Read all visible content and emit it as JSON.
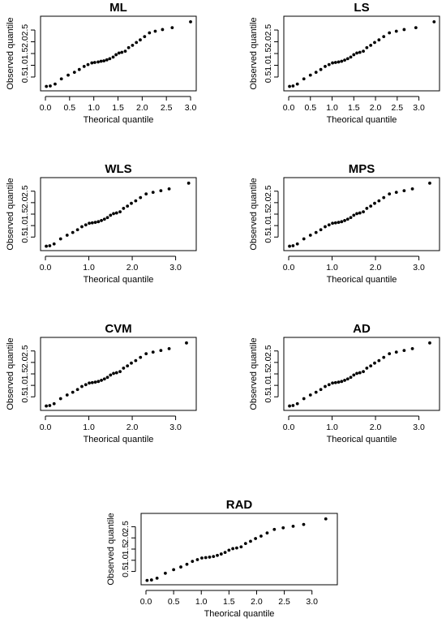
{
  "chart_data": [
    {
      "type": "scatter",
      "title": "ML",
      "xlabel": "Theorical quantile",
      "ylabel": "Observed quantile",
      "xlim": [
        0,
        3.05
      ],
      "ylim": [
        0.05,
        2.95
      ],
      "xticks": [
        0.0,
        0.5,
        1.0,
        1.5,
        2.0,
        2.5,
        3.0
      ],
      "xtick_labels": [
        "0.0",
        "0.5",
        "1.0",
        "1.5",
        "2.0",
        "2.5",
        "3.0"
      ],
      "yticks": [
        0.5,
        1.0,
        1.5,
        2.0,
        2.5
      ],
      "ytick_labels": [
        "0.5",
        "1.0",
        "1.5",
        "2.0",
        "2.5"
      ],
      "x": [
        0.02,
        0.1,
        0.2,
        0.33,
        0.47,
        0.6,
        0.7,
        0.8,
        0.88,
        0.96,
        1.02,
        1.09,
        1.15,
        1.21,
        1.27,
        1.33,
        1.4,
        1.46,
        1.52,
        1.58,
        1.65,
        1.72,
        1.8,
        1.88,
        1.96,
        2.05,
        2.15,
        2.27,
        2.42,
        2.62,
        3.0
      ],
      "y": [
        0.1,
        0.12,
        0.2,
        0.42,
        0.58,
        0.7,
        0.82,
        0.95,
        1.03,
        1.1,
        1.12,
        1.14,
        1.17,
        1.19,
        1.23,
        1.28,
        1.35,
        1.45,
        1.52,
        1.55,
        1.6,
        1.75,
        1.85,
        1.97,
        2.08,
        2.22,
        2.38,
        2.45,
        2.52,
        2.6,
        2.85
      ]
    },
    {
      "type": "scatter",
      "title": "LS",
      "xlabel": "Theorical quantile",
      "ylabel": "Observed quantile",
      "xlim": [
        0,
        3.4
      ],
      "ylim": [
        0.05,
        2.95
      ],
      "xticks": [
        0.0,
        0.5,
        1.0,
        1.5,
        2.0,
        2.5,
        3.0
      ],
      "xtick_labels": [
        "0.0",
        "0.5",
        "1.0",
        "1.5",
        "2.0",
        "2.5",
        "3.0"
      ],
      "yticks": [
        0.5,
        1.0,
        1.5,
        2.0,
        2.5
      ],
      "ytick_labels": [
        "0.5",
        "1.0",
        "1.5",
        "2.0",
        "2.5"
      ],
      "x": [
        0.02,
        0.1,
        0.2,
        0.35,
        0.5,
        0.63,
        0.74,
        0.84,
        0.93,
        1.01,
        1.08,
        1.15,
        1.22,
        1.29,
        1.36,
        1.43,
        1.5,
        1.57,
        1.64,
        1.72,
        1.8,
        1.89,
        1.98,
        2.08,
        2.19,
        2.32,
        2.48,
        2.66,
        2.93,
        3.35
      ],
      "y": [
        0.1,
        0.12,
        0.2,
        0.42,
        0.58,
        0.7,
        0.82,
        0.95,
        1.03,
        1.1,
        1.12,
        1.14,
        1.17,
        1.22,
        1.28,
        1.35,
        1.45,
        1.52,
        1.55,
        1.6,
        1.75,
        1.85,
        1.97,
        2.08,
        2.22,
        2.38,
        2.45,
        2.52,
        2.6,
        2.85
      ]
    },
    {
      "type": "scatter",
      "title": "WLS",
      "xlabel": "Theorical quantile",
      "ylabel": "Observed quantile",
      "xlim": [
        0,
        3.4
      ],
      "ylim": [
        0.05,
        2.95
      ],
      "xticks": [
        0.0,
        1.0,
        2.0,
        3.0
      ],
      "xtick_labels": [
        "0.0",
        "1.0",
        "2.0",
        "3.0"
      ],
      "yticks": [
        0.5,
        1.0,
        1.5,
        2.0,
        2.5
      ],
      "ytick_labels": [
        "0.5",
        "1.0",
        "1.5",
        "2.0",
        "2.5"
      ],
      "x": [
        0.02,
        0.1,
        0.2,
        0.35,
        0.5,
        0.63,
        0.74,
        0.84,
        0.93,
        1.01,
        1.08,
        1.15,
        1.22,
        1.29,
        1.36,
        1.43,
        1.5,
        1.57,
        1.64,
        1.72,
        1.8,
        1.89,
        1.98,
        2.08,
        2.19,
        2.32,
        2.48,
        2.66,
        2.85,
        3.3
      ],
      "y": [
        0.1,
        0.12,
        0.2,
        0.42,
        0.58,
        0.7,
        0.82,
        0.95,
        1.03,
        1.1,
        1.12,
        1.14,
        1.17,
        1.22,
        1.28,
        1.35,
        1.45,
        1.52,
        1.55,
        1.6,
        1.75,
        1.85,
        1.97,
        2.08,
        2.22,
        2.38,
        2.45,
        2.52,
        2.6,
        2.85
      ]
    },
    {
      "type": "scatter",
      "title": "MPS",
      "xlabel": "Theorical quantile",
      "ylabel": "Observed quantile",
      "xlim": [
        0,
        3.4
      ],
      "ylim": [
        0.05,
        2.95
      ],
      "xticks": [
        0.0,
        1.0,
        2.0,
        3.0
      ],
      "xtick_labels": [
        "0.0",
        "1.0",
        "2.0",
        "3.0"
      ],
      "yticks": [
        0.5,
        1.0,
        1.5,
        2.0,
        2.5
      ],
      "ytick_labels": [
        "0.5",
        "1.0",
        "1.5",
        "2.0",
        "2.5"
      ],
      "x": [
        0.02,
        0.1,
        0.2,
        0.35,
        0.5,
        0.63,
        0.74,
        0.84,
        0.93,
        1.01,
        1.08,
        1.15,
        1.22,
        1.29,
        1.36,
        1.43,
        1.5,
        1.57,
        1.64,
        1.72,
        1.8,
        1.89,
        1.98,
        2.08,
        2.19,
        2.32,
        2.48,
        2.66,
        2.85,
        3.25
      ],
      "y": [
        0.1,
        0.12,
        0.2,
        0.42,
        0.58,
        0.7,
        0.82,
        0.95,
        1.03,
        1.1,
        1.12,
        1.14,
        1.17,
        1.22,
        1.28,
        1.35,
        1.45,
        1.52,
        1.55,
        1.6,
        1.75,
        1.85,
        1.97,
        2.08,
        2.22,
        2.38,
        2.45,
        2.52,
        2.6,
        2.85
      ]
    },
    {
      "type": "scatter",
      "title": "CVM",
      "xlabel": "Theorical quantile",
      "ylabel": "Observed quantile",
      "xlim": [
        0,
        3.4
      ],
      "ylim": [
        0.05,
        2.95
      ],
      "xticks": [
        0.0,
        1.0,
        2.0,
        3.0
      ],
      "xtick_labels": [
        "0.0",
        "1.0",
        "2.0",
        "3.0"
      ],
      "yticks": [
        0.5,
        1.0,
        1.5,
        2.0,
        2.5
      ],
      "ytick_labels": [
        "0.5",
        "1.0",
        "1.5",
        "2.0",
        "2.5"
      ],
      "x": [
        0.02,
        0.1,
        0.2,
        0.35,
        0.5,
        0.63,
        0.74,
        0.84,
        0.93,
        1.01,
        1.08,
        1.15,
        1.22,
        1.29,
        1.36,
        1.43,
        1.5,
        1.57,
        1.64,
        1.72,
        1.8,
        1.89,
        1.98,
        2.08,
        2.19,
        2.32,
        2.48,
        2.66,
        2.85,
        3.25
      ],
      "y": [
        0.1,
        0.12,
        0.2,
        0.42,
        0.58,
        0.7,
        0.82,
        0.95,
        1.03,
        1.1,
        1.12,
        1.14,
        1.17,
        1.22,
        1.28,
        1.35,
        1.45,
        1.52,
        1.55,
        1.6,
        1.75,
        1.85,
        1.97,
        2.08,
        2.22,
        2.38,
        2.45,
        2.52,
        2.6,
        2.85
      ]
    },
    {
      "type": "scatter",
      "title": "AD",
      "xlabel": "Theorical quantile",
      "ylabel": "Observed quantile",
      "xlim": [
        0,
        3.4
      ],
      "ylim": [
        0.05,
        2.95
      ],
      "xticks": [
        0.0,
        1.0,
        2.0,
        3.0
      ],
      "xtick_labels": [
        "0.0",
        "1.0",
        "2.0",
        "3.0"
      ],
      "yticks": [
        0.5,
        1.0,
        1.5,
        2.0,
        2.5
      ],
      "ytick_labels": [
        "0.5",
        "1.0",
        "1.5",
        "2.0",
        "2.5"
      ],
      "x": [
        0.02,
        0.1,
        0.2,
        0.35,
        0.5,
        0.63,
        0.74,
        0.84,
        0.93,
        1.01,
        1.08,
        1.15,
        1.22,
        1.29,
        1.36,
        1.43,
        1.5,
        1.57,
        1.64,
        1.72,
        1.8,
        1.89,
        1.98,
        2.08,
        2.19,
        2.32,
        2.48,
        2.66,
        2.85,
        3.25
      ],
      "y": [
        0.1,
        0.12,
        0.2,
        0.42,
        0.58,
        0.7,
        0.82,
        0.95,
        1.03,
        1.1,
        1.12,
        1.14,
        1.17,
        1.22,
        1.28,
        1.35,
        1.45,
        1.52,
        1.55,
        1.6,
        1.75,
        1.85,
        1.97,
        2.08,
        2.22,
        2.38,
        2.45,
        2.52,
        2.6,
        2.85
      ]
    },
    {
      "type": "scatter",
      "title": "RAD",
      "xlabel": "Theorical quantile",
      "ylabel": "Observed quantile",
      "xlim": [
        0,
        3.4
      ],
      "ylim": [
        0.05,
        2.95
      ],
      "xticks": [
        0.0,
        0.5,
        1.0,
        1.5,
        2.0,
        2.5,
        3.0
      ],
      "xtick_labels": [
        "0.0",
        "0.5",
        "1.0",
        "1.5",
        "2.0",
        "2.5",
        "3.0"
      ],
      "yticks": [
        0.5,
        1.0,
        1.5,
        2.0,
        2.5
      ],
      "ytick_labels": [
        "0.5",
        "1.0",
        "1.5",
        "2.0",
        "2.5"
      ],
      "x": [
        0.02,
        0.1,
        0.2,
        0.35,
        0.5,
        0.63,
        0.74,
        0.84,
        0.93,
        1.01,
        1.08,
        1.15,
        1.22,
        1.29,
        1.36,
        1.43,
        1.5,
        1.57,
        1.64,
        1.72,
        1.8,
        1.89,
        1.98,
        2.08,
        2.19,
        2.32,
        2.48,
        2.66,
        2.85,
        3.25
      ],
      "y": [
        0.1,
        0.12,
        0.2,
        0.42,
        0.58,
        0.7,
        0.82,
        0.95,
        1.03,
        1.1,
        1.12,
        1.14,
        1.17,
        1.22,
        1.28,
        1.35,
        1.45,
        1.52,
        1.55,
        1.6,
        1.75,
        1.85,
        1.97,
        2.08,
        2.22,
        2.38,
        2.45,
        2.52,
        2.6,
        2.85
      ]
    }
  ]
}
